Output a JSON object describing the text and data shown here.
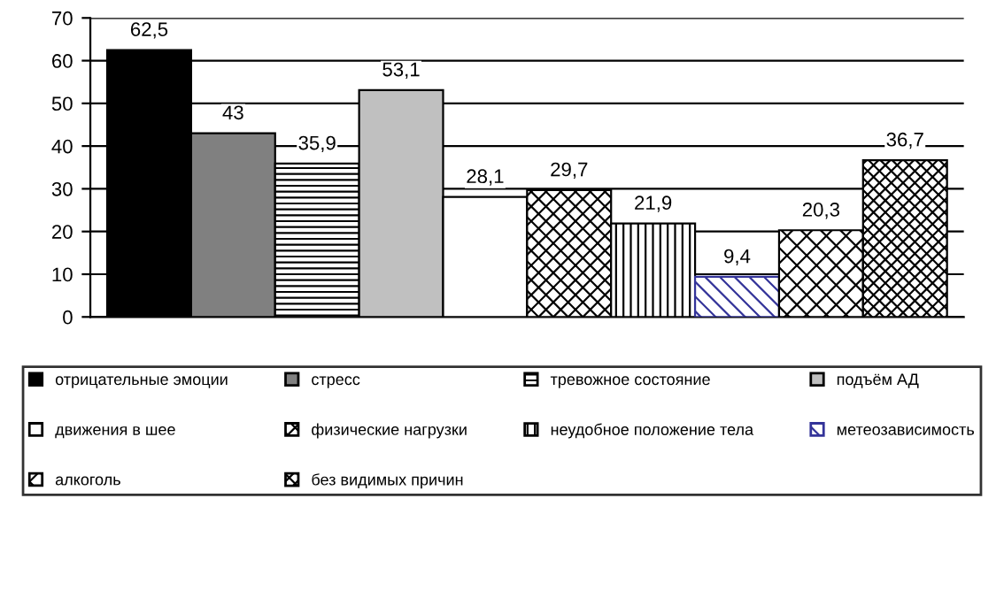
{
  "chart_data": {
    "type": "bar",
    "categories": [
      null
    ],
    "series": [
      {
        "name": "отрицательные эмоции",
        "color": "#000000",
        "values": [
          62.5
        ],
        "value_labels": [
          "62,5"
        ]
      },
      {
        "name": "стресс",
        "color": "#808080",
        "values": [
          43
        ],
        "value_labels": [
          "43"
        ]
      },
      {
        "name": "тревожное состояние",
        "color": "#000000",
        "values": [
          35.9
        ],
        "value_labels": [
          "35,9"
        ]
      },
      {
        "name": "подъём АД",
        "color": "#c0c0c0",
        "values": [
          53.1
        ],
        "value_labels": [
          "53,1"
        ]
      },
      {
        "name": "движения в шее",
        "color": "#ffffff",
        "values": [
          28.1
        ],
        "value_labels": [
          "28,1"
        ]
      },
      {
        "name": "физические нагрузки",
        "color": "#000000",
        "values": [
          29.7
        ],
        "value_labels": [
          "29,7"
        ]
      },
      {
        "name": "неудобное положение тела",
        "color": "#000000",
        "values": [
          21.9
        ],
        "value_labels": [
          "21,9"
        ]
      },
      {
        "name": "метеозависимость",
        "color": "#333399",
        "values": [
          9.4
        ],
        "value_labels": [
          "9,4"
        ]
      },
      {
        "name": "алкоголь",
        "color": "#000000",
        "values": [
          20.3
        ],
        "value_labels": [
          "20,3"
        ]
      },
      {
        "name": "без видимых причин",
        "color": "#000000",
        "values": [
          36.7
        ],
        "value_labels": [
          "36,7"
        ]
      }
    ],
    "ylim": [
      0,
      70
    ],
    "yticks": [
      0,
      10,
      20,
      30,
      40,
      50,
      60,
      70
    ],
    "grid": "y",
    "legend": "bottom"
  }
}
